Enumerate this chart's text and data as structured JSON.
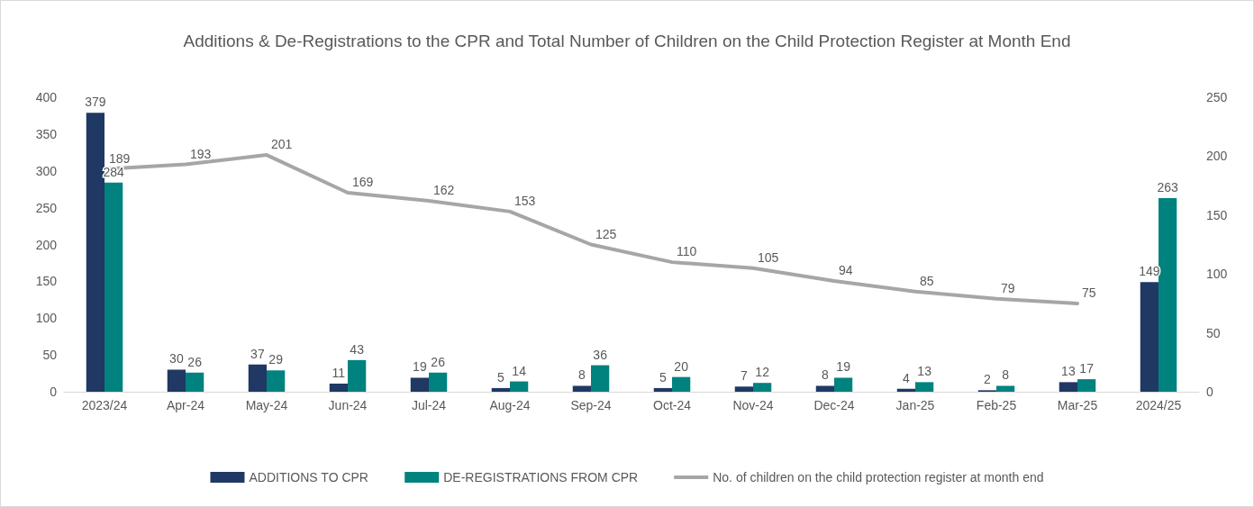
{
  "chart_data": {
    "type": "bar",
    "title": "Additions & De-Registrations to the CPR and Total Number of Children on the Child Protection Register at Month End",
    "categories": [
      "2023/24",
      "Apr-24",
      "May-24",
      "Jun-24",
      "Jul-24",
      "Aug-24",
      "Sep-24",
      "Oct-24",
      "Nov-24",
      "Dec-24",
      "Jan-25",
      "Feb-25",
      "Mar-25",
      "2024/25"
    ],
    "series": [
      {
        "name": "ADDITIONS TO CPR",
        "color": "#1f3864",
        "values": [
          379,
          30,
          37,
          11,
          19,
          5,
          8,
          5,
          7,
          8,
          4,
          2,
          13,
          149
        ]
      },
      {
        "name": "DE-REGISTRATIONS FROM CPR",
        "color": "#00827f",
        "values": [
          284,
          26,
          29,
          43,
          26,
          14,
          36,
          20,
          12,
          19,
          13,
          8,
          17,
          263
        ]
      },
      {
        "name": "No. of children on the child protection register at month end",
        "type": "line",
        "axis": "y2",
        "color": "#a6a6a6",
        "values": [
          189,
          193,
          201,
          169,
          162,
          153,
          125,
          110,
          105,
          94,
          85,
          79,
          75,
          null
        ]
      }
    ],
    "ylim": [
      0,
      400
    ],
    "yticks": [
      0,
      50,
      100,
      150,
      200,
      250,
      300,
      350,
      400
    ],
    "y2lim": [
      0,
      250
    ],
    "y2ticks": [
      0,
      50,
      100,
      150,
      200,
      250
    ],
    "data_labels": true,
    "legend": "bottom",
    "grid": false,
    "marker": "none"
  }
}
